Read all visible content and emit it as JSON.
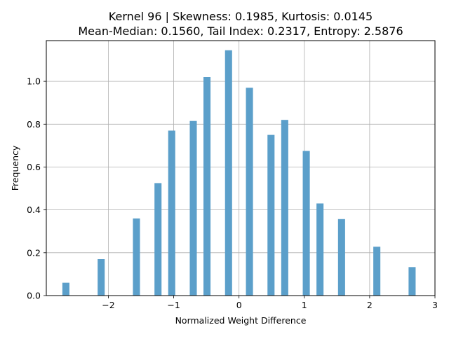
{
  "chart_data": {
    "type": "bar",
    "title_line1": "Kernel 96 | Skewness: 0.1985, Kurtosis: 0.0145",
    "title_line2": "Mean-Median: 0.1560, Tail Index: 0.2317, Entropy: 2.5876",
    "xlabel": "Normalized Weight Difference",
    "ylabel": "Frequency",
    "xlim": [
      -2.95,
      3.0
    ],
    "ylim": [
      0,
      1.19
    ],
    "xticks": [
      -2,
      -1,
      0,
      1,
      2,
      3
    ],
    "xtick_labels": [
      "−2",
      "−1",
      "0",
      "1",
      "2",
      "3"
    ],
    "yticks": [
      0.0,
      0.2,
      0.4,
      0.6,
      0.8,
      1.0
    ],
    "ytick_labels": [
      "0.0",
      "0.2",
      "0.4",
      "0.6",
      "0.8",
      "1.0"
    ],
    "grid": true,
    "bar_color": "#5b9fca",
    "bar_width": 0.108,
    "bars": [
      {
        "x": -2.65,
        "value": 0.06
      },
      {
        "x": -2.11,
        "value": 0.17
      },
      {
        "x": -1.57,
        "value": 0.36
      },
      {
        "x": -1.24,
        "value": 0.525
      },
      {
        "x": -1.03,
        "value": 0.77
      },
      {
        "x": -0.7,
        "value": 0.815
      },
      {
        "x": -0.49,
        "value": 1.02
      },
      {
        "x": -0.16,
        "value": 1.145
      },
      {
        "x": 0.16,
        "value": 0.97
      },
      {
        "x": 0.49,
        "value": 0.75
      },
      {
        "x": 0.7,
        "value": 0.82
      },
      {
        "x": 1.03,
        "value": 0.675
      },
      {
        "x": 1.24,
        "value": 0.43
      },
      {
        "x": 1.57,
        "value": 0.357
      },
      {
        "x": 2.11,
        "value": 0.228
      },
      {
        "x": 2.65,
        "value": 0.133
      }
    ]
  }
}
